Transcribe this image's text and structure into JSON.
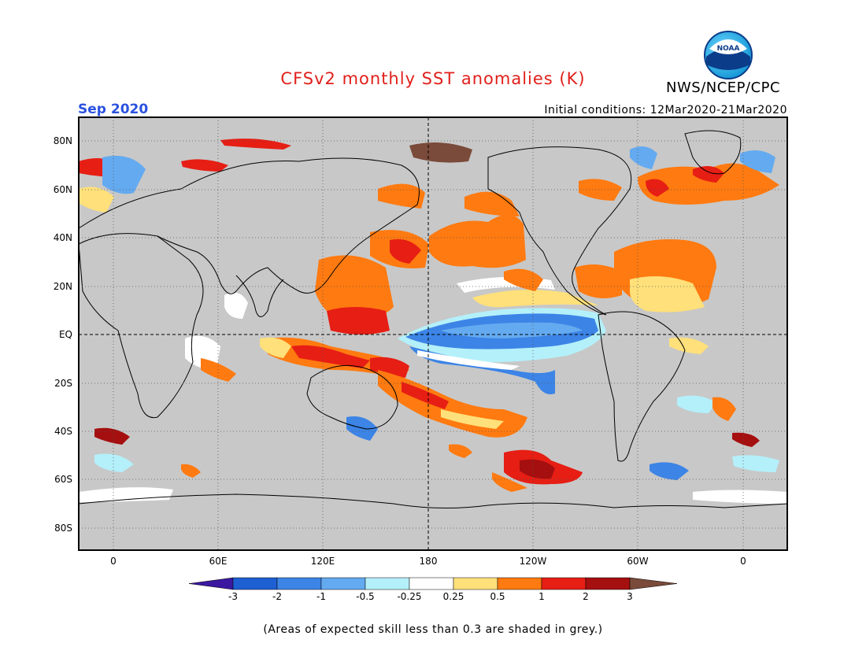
{
  "header": {
    "title": "CFSv2 monthly SST anomalies (K)",
    "organization": "NWS/NCEP/CPC",
    "logo_text": "NOAA",
    "target_month": "Sep 2020",
    "initial_conditions": "Initial conditions: 12Mar2020-21Mar2020"
  },
  "map": {
    "projection": "cylindrical equidistant",
    "central_meridian": "180",
    "lon_labels": [
      "0",
      "60E",
      "120E",
      "180",
      "120W",
      "60W",
      "0"
    ],
    "lat_labels": [
      "80N",
      "60N",
      "40N",
      "20N",
      "EQ",
      "20S",
      "40S",
      "60S",
      "80S"
    ],
    "grid": "dotted",
    "land_color": "#c8c8c8",
    "skill_mask_color": "#c8c8c8"
  },
  "colorbar": {
    "tick_labels": [
      "-3",
      "-2",
      "-1",
      "-0.5",
      "-0.25",
      "0.25",
      "0.5",
      "1",
      "2",
      "3"
    ],
    "colors": [
      "#3c18a0",
      "#1e5fd2",
      "#3c84e6",
      "#64aaf0",
      "#b4f0fa",
      "#ffffff",
      "#ffe07a",
      "#ff7a10",
      "#e61e14",
      "#a50f0f",
      "#7a4a3a"
    ],
    "units": "K"
  },
  "footnote": "(Areas of expected skill less than 0.3 are shaded in grey.)"
}
